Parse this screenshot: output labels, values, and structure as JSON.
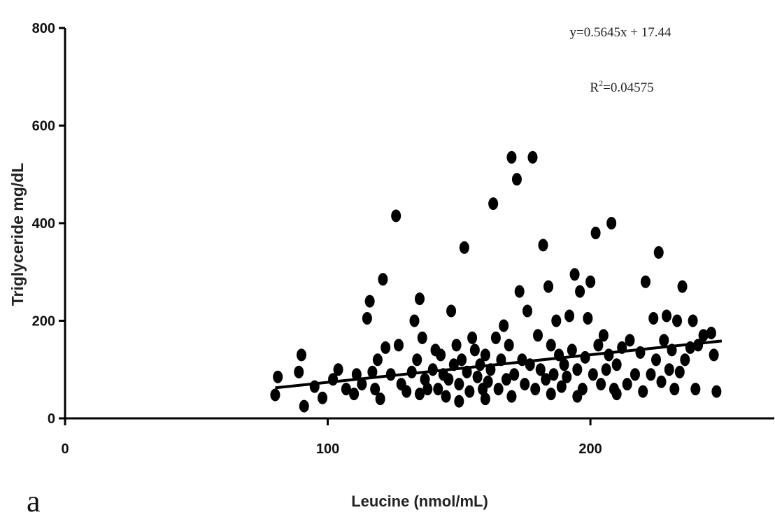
{
  "chart_data": {
    "type": "scatter",
    "panel_label": "a",
    "xlabel": "Leucine (nmol/mL)",
    "ylabel": "Triglyceride mg/dL",
    "xlim": [
      0,
      270
    ],
    "ylim": [
      0,
      800
    ],
    "x_ticks": [
      0,
      100,
      200
    ],
    "y_ticks": [
      0,
      200,
      400,
      600,
      800
    ],
    "grid": false,
    "legend": "none",
    "point_color": "#000000",
    "regression": {
      "equation": "y=0.5645x + 17.44",
      "r2_prefix": "R",
      "r2_sup": "2",
      "r2_value": "=0.04575",
      "slope": 0.5645,
      "intercept": 17.44,
      "x_range": [
        80,
        250
      ]
    },
    "points": [
      [
        80,
        48
      ],
      [
        81,
        85
      ],
      [
        90,
        130
      ],
      [
        91,
        25
      ],
      [
        89,
        95
      ],
      [
        95,
        65
      ],
      [
        98,
        42
      ],
      [
        102,
        80
      ],
      [
        104,
        100
      ],
      [
        107,
        60
      ],
      [
        110,
        50
      ],
      [
        111,
        90
      ],
      [
        113,
        70
      ],
      [
        115,
        205
      ],
      [
        116,
        240
      ],
      [
        117,
        95
      ],
      [
        118,
        60
      ],
      [
        119,
        120
      ],
      [
        121,
        285
      ],
      [
        122,
        145
      ],
      [
        124,
        90
      ],
      [
        126,
        415
      ],
      [
        127,
        150
      ],
      [
        128,
        70
      ],
      [
        130,
        55
      ],
      [
        132,
        95
      ],
      [
        133,
        200
      ],
      [
        134,
        120
      ],
      [
        135,
        245
      ],
      [
        136,
        165
      ],
      [
        137,
        80
      ],
      [
        138,
        60
      ],
      [
        140,
        100
      ],
      [
        141,
        140
      ],
      [
        142,
        60
      ],
      [
        143,
        130
      ],
      [
        144,
        90
      ],
      [
        146,
        80
      ],
      [
        147,
        220
      ],
      [
        148,
        110
      ],
      [
        149,
        150
      ],
      [
        150,
        70
      ],
      [
        151,
        120
      ],
      [
        152,
        350
      ],
      [
        153,
        95
      ],
      [
        154,
        55
      ],
      [
        155,
        165
      ],
      [
        156,
        140
      ],
      [
        157,
        85
      ],
      [
        158,
        110
      ],
      [
        159,
        60
      ],
      [
        160,
        130
      ],
      [
        161,
        75
      ],
      [
        162,
        100
      ],
      [
        163,
        440
      ],
      [
        164,
        165
      ],
      [
        165,
        60
      ],
      [
        166,
        120
      ],
      [
        167,
        190
      ],
      [
        168,
        80
      ],
      [
        169,
        150
      ],
      [
        170,
        535
      ],
      [
        171,
        90
      ],
      [
        172,
        490
      ],
      [
        173,
        260
      ],
      [
        174,
        120
      ],
      [
        175,
        70
      ],
      [
        176,
        220
      ],
      [
        177,
        110
      ],
      [
        178,
        535
      ],
      [
        179,
        60
      ],
      [
        180,
        170
      ],
      [
        181,
        100
      ],
      [
        182,
        355
      ],
      [
        183,
        80
      ],
      [
        184,
        270
      ],
      [
        185,
        150
      ],
      [
        186,
        90
      ],
      [
        187,
        200
      ],
      [
        188,
        130
      ],
      [
        189,
        65
      ],
      [
        190,
        110
      ],
      [
        191,
        85
      ],
      [
        192,
        210
      ],
      [
        193,
        140
      ],
      [
        194,
        295
      ],
      [
        195,
        100
      ],
      [
        196,
        260
      ],
      [
        197,
        60
      ],
      [
        198,
        125
      ],
      [
        199,
        205
      ],
      [
        200,
        280
      ],
      [
        201,
        90
      ],
      [
        202,
        380
      ],
      [
        203,
        150
      ],
      [
        204,
        70
      ],
      [
        205,
        170
      ],
      [
        206,
        100
      ],
      [
        207,
        130
      ],
      [
        208,
        400
      ],
      [
        209,
        60
      ],
      [
        210,
        110
      ],
      [
        212,
        145
      ],
      [
        214,
        70
      ],
      [
        215,
        160
      ],
      [
        217,
        90
      ],
      [
        219,
        135
      ],
      [
        220,
        55
      ],
      [
        221,
        280
      ],
      [
        223,
        90
      ],
      [
        224,
        205
      ],
      [
        225,
        120
      ],
      [
        226,
        340
      ],
      [
        227,
        75
      ],
      [
        228,
        160
      ],
      [
        229,
        210
      ],
      [
        230,
        100
      ],
      [
        231,
        140
      ],
      [
        232,
        60
      ],
      [
        233,
        200
      ],
      [
        234,
        95
      ],
      [
        235,
        270
      ],
      [
        236,
        120
      ],
      [
        238,
        145
      ],
      [
        239,
        200
      ],
      [
        240,
        60
      ],
      [
        241,
        150
      ],
      [
        243,
        170
      ],
      [
        246,
        175
      ],
      [
        247,
        130
      ],
      [
        248,
        55
      ],
      [
        120,
        40
      ],
      [
        135,
        50
      ],
      [
        145,
        45
      ],
      [
        160,
        40
      ],
      [
        170,
        45
      ],
      [
        185,
        50
      ],
      [
        195,
        45
      ],
      [
        210,
        50
      ],
      [
        150,
        35
      ]
    ]
  }
}
